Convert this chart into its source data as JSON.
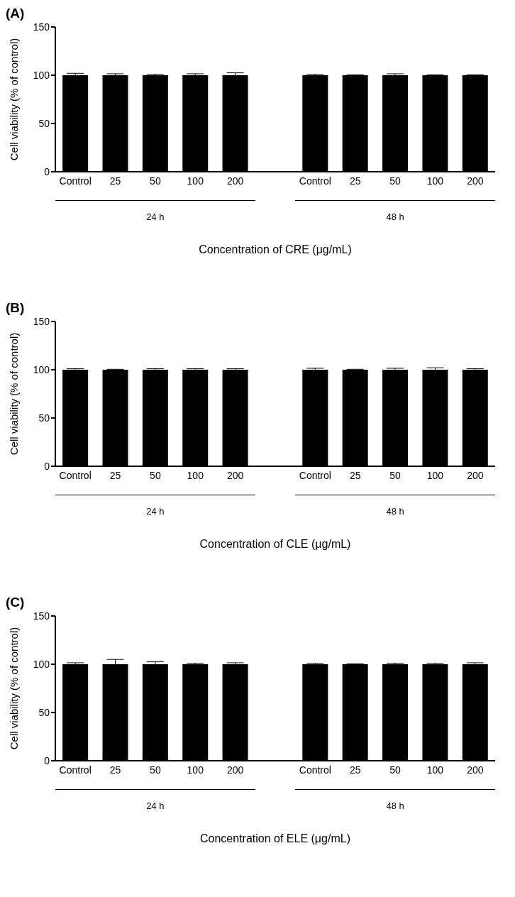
{
  "chart_data": [
    {
      "type": "bar",
      "title": "(A)",
      "xlabel": "Concentration of CRE (μg/mL)",
      "ylabel": "Cell viability (% of control)",
      "categories": [
        "Control",
        "25",
        "50",
        "100",
        "200",
        null,
        "Control",
        "25",
        "50",
        "100",
        "200"
      ],
      "values": [
        100,
        100,
        100,
        100,
        100,
        null,
        100,
        100,
        100,
        100,
        100
      ],
      "errors": [
        2,
        1.5,
        1,
        1.5,
        2.5,
        null,
        1,
        0.5,
        1.5,
        0.5,
        0.5
      ],
      "color": "#000000",
      "ylim": [
        0,
        150
      ],
      "yticks": [
        0,
        50,
        100,
        150
      ],
      "annotations": [
        "24 h",
        "48 h"
      ]
    },
    {
      "type": "bar",
      "title": "(B)",
      "xlabel": "Concentration of CLE (μg/mL)",
      "ylabel": "Cell viability (% of control)",
      "categories": [
        "Control",
        "25",
        "50",
        "100",
        "200",
        null,
        "Control",
        "25",
        "50",
        "100",
        "200"
      ],
      "values": [
        100,
        100,
        100,
        100,
        100,
        null,
        100,
        100,
        100,
        100,
        100
      ],
      "errors": [
        1,
        0.5,
        1,
        1,
        1,
        null,
        1.5,
        0.5,
        1.5,
        2,
        1
      ],
      "color": "#000000",
      "ylim": [
        0,
        150
      ],
      "yticks": [
        0,
        50,
        100,
        150
      ],
      "annotations": [
        "24 h",
        "48 h"
      ]
    },
    {
      "type": "bar",
      "title": "(C)",
      "xlabel": "Concentration of ELE (μg/mL)",
      "ylabel": "Cell viability (% of control)",
      "categories": [
        "Control",
        "25",
        "50",
        "100",
        "200",
        null,
        "Control",
        "25",
        "50",
        "100",
        "200"
      ],
      "values": [
        100,
        100,
        100,
        100,
        100,
        null,
        100,
        100,
        100,
        100,
        100
      ],
      "errors": [
        1.5,
        5,
        2.5,
        1,
        1.5,
        null,
        1,
        0.5,
        1,
        1,
        1.5
      ],
      "color": "#000000",
      "ylim": [
        0,
        150
      ],
      "yticks": [
        0,
        50,
        100,
        150
      ],
      "annotations": [
        "24 h",
        "48 h"
      ]
    }
  ]
}
